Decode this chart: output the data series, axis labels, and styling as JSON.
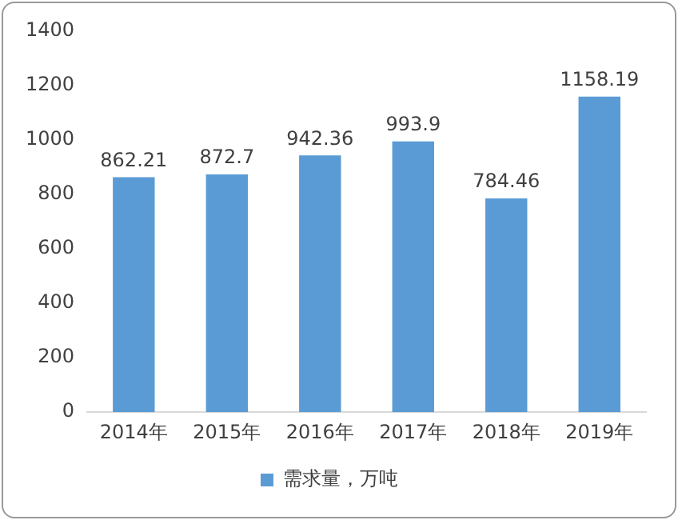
{
  "chart_data": {
    "type": "bar",
    "categories": [
      "2014年",
      "2015年",
      "2016年",
      "2017年",
      "2018年",
      "2019年"
    ],
    "series": [
      {
        "name": "需求量，万吨",
        "color": "#5b9bd5",
        "values": [
          862.21,
          872.7,
          942.36,
          993.9,
          784.46,
          1158.19
        ]
      }
    ],
    "ylim": [
      0,
      1400
    ],
    "yticks": [
      0,
      200,
      400,
      600,
      800,
      1000,
      1200,
      1400
    ],
    "grid": false,
    "legend": "bottom",
    "data_labels": true
  }
}
